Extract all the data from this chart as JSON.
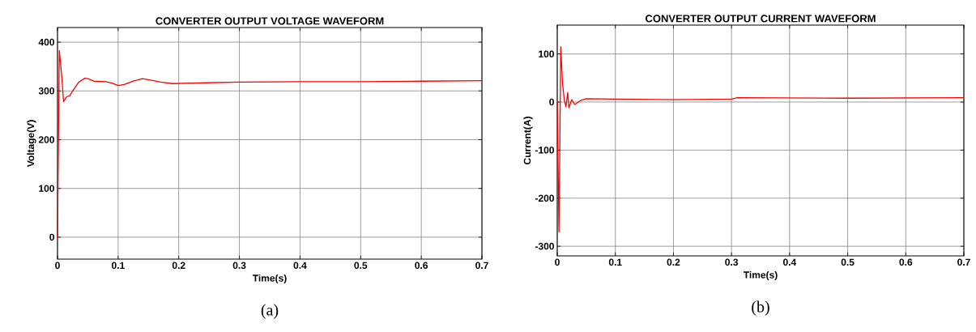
{
  "chart_data": [
    {
      "type": "line",
      "title": "CONVERTER OUTPUT VOLTAGE WAVEFORM",
      "xlabel": "Time(s)",
      "ylabel": "Voltage(V)",
      "annotations": [
        "(a)"
      ],
      "x": [
        0,
        0.003,
        0.007,
        0.01,
        0.015,
        0.02,
        0.025,
        0.035,
        0.045,
        0.05,
        0.06,
        0.08,
        0.09,
        0.1,
        0.11,
        0.125,
        0.14,
        0.155,
        0.17,
        0.19,
        0.22,
        0.3,
        0.4,
        0.5,
        0.6,
        0.7
      ],
      "series": [
        {
          "color": "#ff0000",
          "values": [
            0,
            383,
            330,
            278,
            288,
            290,
            300,
            318,
            326,
            325,
            320,
            319,
            316,
            311,
            313,
            320,
            325,
            322,
            318,
            315,
            316,
            318,
            319,
            319,
            320,
            321
          ]
        }
      ],
      "xlim": [
        0,
        0.7
      ],
      "ylim": [
        -45,
        430
      ],
      "xticks": [
        0,
        0.1,
        0.2,
        0.3,
        0.4,
        0.5,
        0.6,
        0.7
      ],
      "yticks": [
        0,
        100,
        200,
        300,
        400
      ],
      "grid": true
    },
    {
      "type": "line",
      "title": "CONVERTER OUTPUT CURRENT WAVEFORM",
      "xlabel": "Time(s)",
      "ylabel": "Current(A)",
      "annotations": [
        "(b)"
      ],
      "x": [
        0,
        0.003,
        0.006,
        0.009,
        0.012,
        0.015,
        0.018,
        0.02,
        0.025,
        0.03,
        0.04,
        0.05,
        0.1,
        0.2,
        0.3,
        0.31,
        0.5,
        0.7
      ],
      "series": [
        {
          "color": "#ff0000",
          "values": [
            0,
            -270,
            115,
            40,
            5,
            -10,
            20,
            -12,
            5,
            -5,
            3,
            7,
            6,
            5,
            6,
            9,
            8,
            9
          ]
        }
      ],
      "xlim": [
        0,
        0.7
      ],
      "ylim": [
        -320,
        160
      ],
      "xticks": [
        0,
        0.1,
        0.2,
        0.3,
        0.4,
        0.5,
        0.6,
        0.7
      ],
      "yticks": [
        -300,
        -200,
        -100,
        0,
        100
      ],
      "grid": true
    }
  ]
}
